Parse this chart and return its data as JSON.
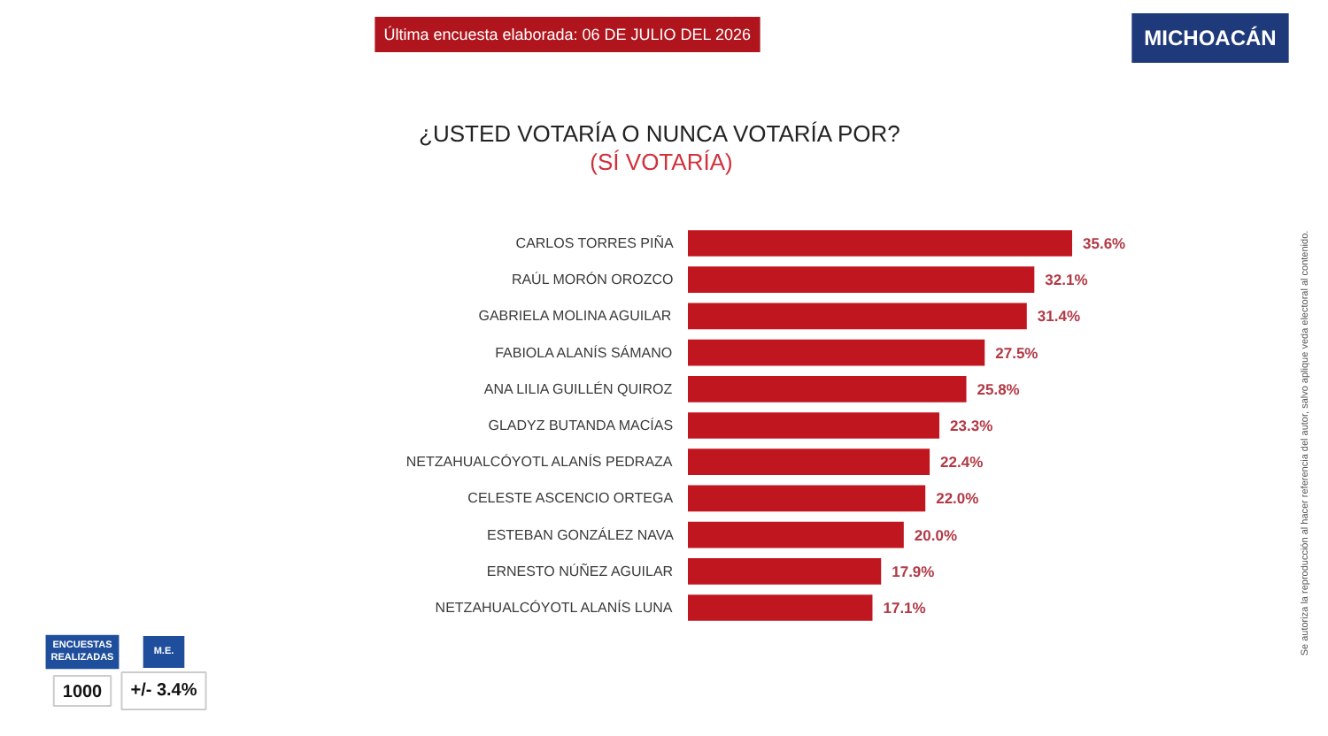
{
  "chart_data": {
    "type": "bar",
    "orientation": "horizontal",
    "title": "¿USTED VOTARÍA O NUNCA VOTARÍA POR?",
    "subtitle": "(SÍ VOTARÍA)",
    "categories": [
      "CARLOS TORRES PIÑA",
      "RAÚL MORÓN OROZCO",
      "GABRIELA MOLINA AGUILAR",
      "FABIOLA ALANÍS SÁMANO",
      "ANA LILIA GUILLÉN QUIROZ",
      "GLADYZ BUTANDA MACÍAS",
      "NETZAHUALCÓYOTL ALANÍS PEDRAZA",
      "CELESTE ASCENCIO ORTEGA",
      "ESTEBAN GONZÁLEZ NAVA",
      "ERNESTO NÚÑEZ AGUILAR",
      "NETZAHUALCÓYOTL ALANÍS LUNA"
    ],
    "values": [
      35.6,
      32.1,
      31.4,
      27.5,
      25.8,
      23.3,
      22.4,
      22.0,
      20.0,
      17.9,
      17.1
    ],
    "value_labels": [
      "35.6%",
      "32.1%",
      "31.4%",
      "27.5%",
      "25.8%",
      "23.3%",
      "22.4%",
      "22.0%",
      "20.0%",
      "17.9%",
      "17.1%"
    ],
    "color": "#c0161f",
    "tick_labels": "y",
    "annotations": [
      "Última encuesta elaborada: 06 DE JULIO DEL 2026",
      "MICHOACÁN",
      "ENCUESTAS REALIZADAS",
      "M.E.",
      "1000",
      "+/- 3.4%",
      "Se autoriza la reproducción al hacer referencia del autor, salvo aplique veda electoral al contenido."
    ]
  }
}
